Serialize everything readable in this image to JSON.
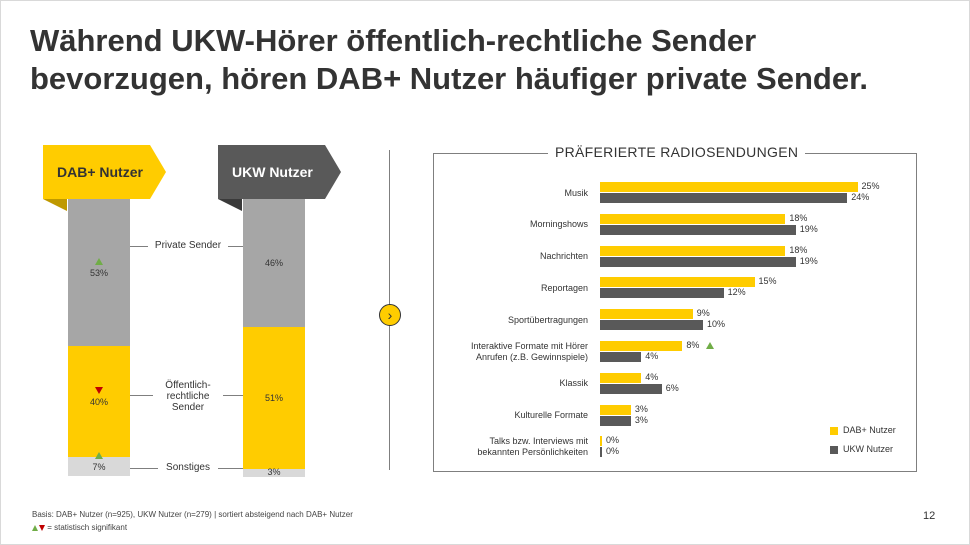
{
  "title_lines": [
    "Während UKW-Hörer öffentlich-rechtliche Sender",
    "bevorzugen, hören DAB+ Nutzer häufiger private Sender."
  ],
  "colors": {
    "dab": "#ffcc00",
    "ukw": "#595959",
    "private": "#a6a6a6",
    "other": "#d9d9d9",
    "up": "#70ad47",
    "down": "#c00000"
  },
  "chart_data": [
    {
      "type": "bar",
      "stacked": true,
      "categories": [
        "DAB+ Nutzer",
        "UKW Nutzer"
      ],
      "series": [
        {
          "name": "Private Sender",
          "values": [
            53,
            46
          ],
          "labels": [
            "53%",
            "46%"
          ]
        },
        {
          "name": "Öffentlich-rechtliche Sender",
          "values": [
            40,
            51
          ],
          "labels": [
            "40%",
            "51%"
          ]
        },
        {
          "name": "Sonstiges",
          "values": [
            7,
            3
          ],
          "labels": [
            "7%",
            "3%"
          ]
        }
      ],
      "significance": {
        "DAB+ Nutzer": {
          "Private Sender": "up",
          "Öffentlich-rechtliche Sender": "down",
          "Sonstiges": "up"
        }
      }
    },
    {
      "type": "bar",
      "orientation": "horizontal",
      "title": "PRÄFERIERTE RADIOSENDUNGEN",
      "categories": [
        "Musik",
        "Morningshows",
        "Nachrichten",
        "Reportagen",
        "Sportübertragungen",
        "Interaktive Formate mit Hörer Anrufen (z.B. Gewinnspiele)",
        "Klassik",
        "Kulturelle Formate",
        "Talks bzw. Interviews mit bekannten Persönlichkeiten"
      ],
      "series": [
        {
          "name": "DAB+ Nutzer",
          "values": [
            25,
            18,
            18,
            15,
            9,
            8,
            4,
            3,
            0
          ],
          "labels": [
            "25%",
            "18%",
            "18%",
            "15%",
            "9%",
            "8%",
            "4%",
            "3%",
            "0%"
          ]
        },
        {
          "name": "UKW Nutzer",
          "values": [
            24,
            19,
            19,
            12,
            10,
            4,
            6,
            3,
            0
          ],
          "labels": [
            "24%",
            "19%",
            "19%",
            "12%",
            "10%",
            "4%",
            "6%",
            "3%",
            "0%"
          ]
        }
      ],
      "significance": {
        "Interaktive Formate mit Hörer Anrufen (z.B. Gewinnspiele)": "up"
      },
      "legend": "bottom-right"
    }
  ],
  "stack_labels": {
    "private": "Private Sender",
    "public_lines": [
      "Öffentlich-",
      "rechtliche",
      "Sender"
    ],
    "other": "Sonstiges"
  },
  "hbar_label_lines": [
    [
      "Musik"
    ],
    [
      "Morningshows"
    ],
    [
      "Nachrichten"
    ],
    [
      "Reportagen"
    ],
    [
      "Sportübertragungen"
    ],
    [
      "Interaktive Formate mit Hörer",
      "Anrufen (z.B. Gewinnspiele)"
    ],
    [
      "Klassik"
    ],
    [
      "Kulturelle Formate"
    ],
    [
      "Talks bzw. Interviews mit",
      "bekannten Persönlichkeiten"
    ]
  ],
  "footer": {
    "basis": "Basis: DAB+ Nutzer (n=925), UKW Nutzer (n=279) | sortiert absteigend nach DAB+ Nutzer",
    "sig_note": " = statistisch signifikant"
  },
  "page_number": "12",
  "icons": {
    "next": "chevron-right-icon"
  }
}
